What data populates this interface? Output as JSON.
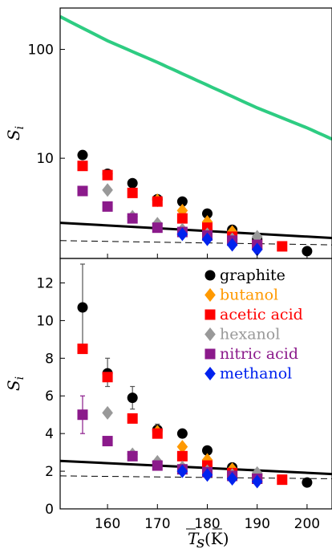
{
  "chart_data": [
    {
      "type": "scatter",
      "panel": "top",
      "yscale": "log",
      "ylabel": "S_i",
      "ylim": [
        1.2,
        240
      ],
      "xlim": [
        150.5,
        205
      ],
      "yticks": [
        10,
        100
      ],
      "ytick_labels": [
        "10",
        "100"
      ],
      "grid": false,
      "series": [
        {
          "name": "graphite",
          "marker": "circle",
          "color": "#000000",
          "points": [
            [
              155,
              10.7
            ],
            [
              160,
              7.2
            ],
            [
              165,
              5.9
            ],
            [
              170,
              4.2
            ],
            [
              175,
              4.0
            ],
            [
              180,
              3.1
            ],
            [
              185,
              2.2
            ],
            [
              190,
              1.8
            ],
            [
              200,
              1.4
            ]
          ]
        },
        {
          "name": "butanol",
          "marker": "diamond",
          "color": "#ff9900",
          "points": [
            [
              170,
              4.1
            ],
            [
              175,
              3.3
            ],
            [
              180,
              2.6
            ],
            [
              185,
              2.1
            ]
          ]
        },
        {
          "name": "acetic acid",
          "marker": "square",
          "color": "#ff0000",
          "points": [
            [
              155,
              8.5
            ],
            [
              160,
              7.0
            ],
            [
              165,
              4.8
            ],
            [
              170,
              4.0
            ],
            [
              175,
              2.8
            ],
            [
              180,
              2.3
            ],
            [
              185,
              1.9
            ],
            [
              190,
              1.6
            ],
            [
              195,
              1.55
            ]
          ]
        },
        {
          "name": "hexanol",
          "marker": "diamond",
          "color": "#999999",
          "points": [
            [
              160,
              5.1
            ],
            [
              165,
              2.9
            ],
            [
              170,
              2.5
            ],
            [
              175,
              2.2
            ],
            [
              180,
              2.0
            ],
            [
              185,
              1.8
            ],
            [
              190,
              1.9
            ]
          ]
        },
        {
          "name": "nitric acid",
          "marker": "square",
          "color": "#8b1a8b",
          "points": [
            [
              155,
              5.0
            ],
            [
              160,
              3.6
            ],
            [
              165,
              2.8
            ],
            [
              170,
              2.3
            ],
            [
              175,
              2.1
            ],
            [
              180,
              1.95
            ],
            [
              185,
              1.75
            ],
            [
              190,
              1.6
            ]
          ]
        },
        {
          "name": "methanol",
          "marker": "diamond",
          "color": "#0022ee",
          "points": [
            [
              175,
              2.0
            ],
            [
              180,
              1.8
            ],
            [
              185,
              1.6
            ],
            [
              190,
              1.45
            ]
          ]
        }
      ],
      "curves": [
        {
          "color": "#2ecc82",
          "style": "solid",
          "points": [
            [
              150.5,
              200
            ],
            [
              160,
              120
            ],
            [
              170,
              76
            ],
            [
              180,
              47
            ],
            [
              190,
              29
            ],
            [
              200,
              19
            ],
            [
              205,
              15
            ]
          ]
        },
        {
          "color": "#000000",
          "style": "solid",
          "points": [
            [
              150.5,
              2.55
            ],
            [
              205,
              1.85
            ]
          ]
        },
        {
          "color": "#000000",
          "style": "dashed",
          "points": [
            [
              150.5,
              1.75
            ],
            [
              205,
              1.6
            ]
          ]
        }
      ]
    },
    {
      "type": "scatter",
      "panel": "bottom",
      "xlabel": "T_s (K)",
      "ylabel": "S_i",
      "xlim": [
        150.5,
        205
      ],
      "ylim": [
        0,
        13.3
      ],
      "xticks": [
        160,
        170,
        180,
        190,
        200
      ],
      "xtick_labels": [
        "160",
        "170",
        "180",
        "190",
        "200"
      ],
      "yticks": [
        0,
        2,
        4,
        6,
        8,
        10,
        12
      ],
      "ytick_labels": [
        "0",
        "2",
        "4",
        "6",
        "8",
        "10",
        "12"
      ],
      "grid": false,
      "legend_position": "top-right",
      "series": [
        {
          "name": "graphite",
          "marker": "circle",
          "color": "#000000",
          "points": [
            [
              155,
              10.7
            ],
            [
              160,
              7.2
            ],
            [
              165,
              5.9
            ],
            [
              170,
              4.2
            ],
            [
              175,
              4.0
            ],
            [
              180,
              3.1
            ],
            [
              185,
              2.2
            ],
            [
              190,
              1.8
            ],
            [
              200,
              1.4
            ]
          ],
          "errors": [
            [
              155,
              8.4,
              13.0
            ],
            [
              160,
              6.5,
              8.0
            ],
            [
              165,
              5.3,
              6.5
            ],
            [
              170,
              3.9,
              4.5
            ]
          ]
        },
        {
          "name": "butanol",
          "marker": "diamond",
          "color": "#ff9900",
          "points": [
            [
              170,
              4.1
            ],
            [
              175,
              3.3
            ],
            [
              180,
              2.6
            ],
            [
              185,
              2.1
            ]
          ]
        },
        {
          "name": "acetic acid",
          "marker": "square",
          "color": "#ff0000",
          "points": [
            [
              155,
              8.5
            ],
            [
              160,
              7.0
            ],
            [
              165,
              4.8
            ],
            [
              170,
              4.0
            ],
            [
              175,
              2.8
            ],
            [
              180,
              2.3
            ],
            [
              185,
              1.9
            ],
            [
              190,
              1.6
            ],
            [
              195,
              1.55
            ]
          ]
        },
        {
          "name": "hexanol",
          "marker": "diamond",
          "color": "#999999",
          "points": [
            [
              160,
              5.1
            ],
            [
              165,
              2.9
            ],
            [
              170,
              2.5
            ],
            [
              175,
              2.2
            ],
            [
              180,
              2.0
            ],
            [
              185,
              1.8
            ],
            [
              190,
              1.9
            ]
          ]
        },
        {
          "name": "nitric acid",
          "marker": "square",
          "color": "#8b1a8b",
          "points": [
            [
              155,
              5.0
            ],
            [
              160,
              3.6
            ],
            [
              165,
              2.8
            ],
            [
              170,
              2.3
            ],
            [
              175,
              2.1
            ],
            [
              180,
              1.95
            ],
            [
              185,
              1.75
            ],
            [
              190,
              1.6
            ]
          ],
          "errors": [
            [
              155,
              4.0,
              6.0
            ]
          ]
        },
        {
          "name": "methanol",
          "marker": "diamond",
          "color": "#0022ee",
          "points": [
            [
              175,
              2.0
            ],
            [
              180,
              1.8
            ],
            [
              185,
              1.6
            ],
            [
              190,
              1.45
            ]
          ]
        }
      ],
      "curves": [
        {
          "color": "#000000",
          "style": "solid",
          "points": [
            [
              150.5,
              2.55
            ],
            [
              205,
              1.85
            ]
          ]
        },
        {
          "color": "#000000",
          "style": "dashed",
          "points": [
            [
              150.5,
              1.75
            ],
            [
              205,
              1.6
            ]
          ]
        }
      ]
    }
  ]
}
